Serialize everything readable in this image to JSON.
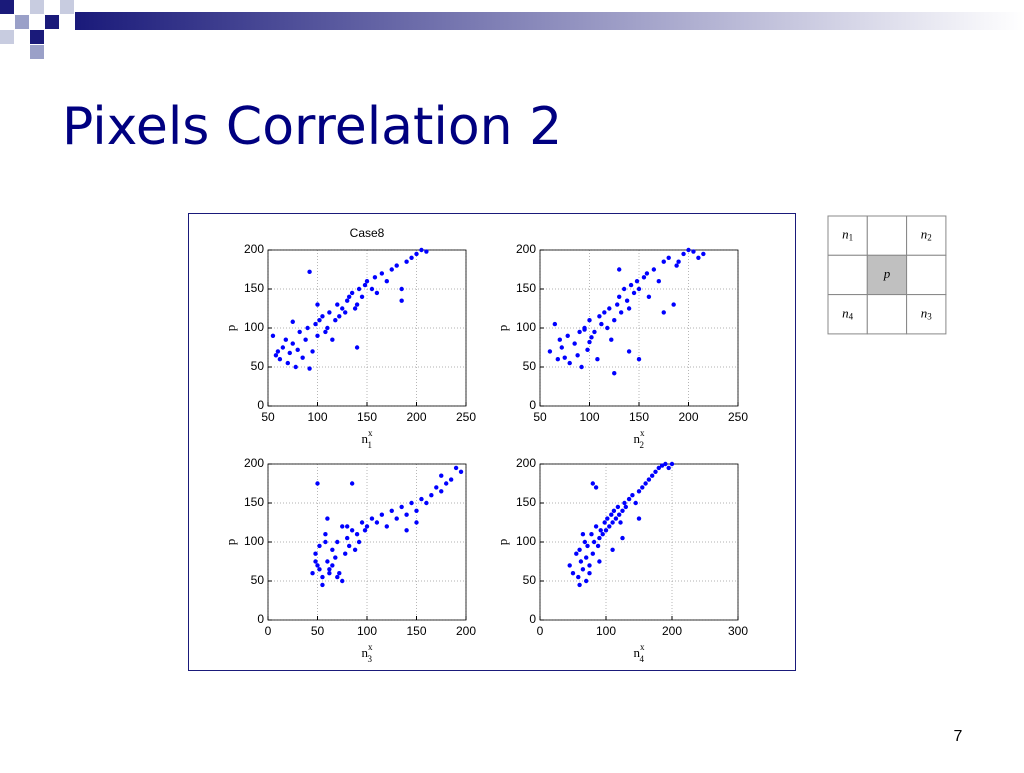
{
  "slide": {
    "title": "Pixels Correlation 2",
    "page_number": "7"
  },
  "neighborhood": {
    "rows": [
      [
        {
          "base": "n",
          "sub": "1"
        },
        null,
        {
          "base": "n",
          "sub": "2"
        }
      ],
      [
        null,
        {
          "base": "p"
        },
        null
      ],
      [
        {
          "base": "n",
          "sub": "4"
        },
        null,
        {
          "base": "n",
          "sub": "3"
        }
      ]
    ]
  },
  "chart_data": [
    {
      "type": "scatter",
      "title": "Case8",
      "xlabel": "n",
      "xlabel_sup": "x",
      "xlabel_sub": "1",
      "ylabel": "p",
      "xlim": [
        50,
        250
      ],
      "xticks": [
        50,
        100,
        150,
        200,
        250
      ],
      "ylim": [
        0,
        200
      ],
      "yticks": [
        0,
        50,
        100,
        150,
        200
      ],
      "grid": true,
      "series": [
        {
          "color": "#0000ff",
          "x": [
            55,
            58,
            60,
            62,
            65,
            68,
            70,
            72,
            75,
            78,
            80,
            82,
            85,
            88,
            90,
            92,
            95,
            98,
            100,
            102,
            105,
            108,
            110,
            112,
            115,
            118,
            120,
            122,
            125,
            128,
            130,
            132,
            135,
            138,
            140,
            142,
            145,
            148,
            150,
            155,
            158,
            160,
            165,
            170,
            175,
            180,
            185,
            190,
            195,
            200,
            205,
            210,
            92,
            140,
            185,
            100,
            75
          ],
          "values": [
            90,
            65,
            70,
            60,
            75,
            85,
            55,
            68,
            80,
            50,
            72,
            95,
            62,
            85,
            100,
            48,
            70,
            105,
            90,
            110,
            115,
            95,
            100,
            120,
            85,
            110,
            130,
            115,
            125,
            120,
            135,
            140,
            145,
            125,
            130,
            150,
            140,
            155,
            160,
            150,
            165,
            145,
            170,
            160,
            175,
            180,
            150,
            185,
            190,
            195,
            200,
            198,
            172,
            75,
            135,
            130,
            108
          ]
        }
      ]
    },
    {
      "type": "scatter",
      "xlabel": "n",
      "xlabel_sup": "x",
      "xlabel_sub": "2",
      "ylabel": "p",
      "xlim": [
        50,
        250
      ],
      "xticks": [
        50,
        100,
        150,
        200,
        250
      ],
      "ylim": [
        0,
        200
      ],
      "yticks": [
        0,
        50,
        100,
        150,
        200
      ],
      "grid": true,
      "series": [
        {
          "color": "#0000ff",
          "x": [
            60,
            65,
            68,
            70,
            72,
            75,
            78,
            80,
            85,
            88,
            90,
            92,
            95,
            98,
            100,
            102,
            105,
            108,
            110,
            112,
            115,
            118,
            120,
            122,
            125,
            128,
            130,
            132,
            135,
            138,
            140,
            142,
            145,
            148,
            150,
            155,
            158,
            160,
            165,
            170,
            175,
            180,
            185,
            188,
            190,
            195,
            200,
            205,
            210,
            215,
            125,
            140,
            150,
            175,
            130,
            95,
            100
          ],
          "values": [
            70,
            105,
            60,
            85,
            75,
            62,
            90,
            55,
            80,
            65,
            95,
            50,
            100,
            72,
            110,
            88,
            95,
            60,
            115,
            105,
            120,
            100,
            125,
            85,
            110,
            130,
            140,
            120,
            150,
            135,
            125,
            155,
            145,
            160,
            150,
            165,
            170,
            140,
            175,
            160,
            185,
            190,
            130,
            180,
            185,
            195,
            200,
            198,
            190,
            195,
            42,
            70,
            60,
            120,
            175,
            98,
            82
          ]
        }
      ]
    },
    {
      "type": "scatter",
      "xlabel": "n",
      "xlabel_sup": "x",
      "xlabel_sub": "3",
      "ylabel": "p",
      "xlim": [
        0,
        200
      ],
      "xticks": [
        0,
        50,
        100,
        150,
        200
      ],
      "ylim": [
        0,
        200
      ],
      "yticks": [
        0,
        50,
        100,
        150,
        200
      ],
      "grid": true,
      "series": [
        {
          "color": "#0000ff",
          "x": [
            45,
            48,
            50,
            52,
            55,
            58,
            60,
            62,
            65,
            68,
            70,
            72,
            75,
            78,
            80,
            82,
            85,
            88,
            90,
            92,
            95,
            98,
            100,
            105,
            110,
            115,
            120,
            125,
            130,
            135,
            140,
            145,
            150,
            155,
            160,
            165,
            170,
            175,
            180,
            185,
            190,
            195,
            50,
            55,
            60,
            65,
            70,
            75,
            80,
            52,
            58,
            62,
            48,
            85,
            140,
            175,
            150
          ],
          "values": [
            60,
            85,
            70,
            95,
            55,
            110,
            75,
            65,
            90,
            80,
            100,
            60,
            120,
            85,
            105,
            95,
            115,
            90,
            110,
            100,
            125,
            115,
            120,
            130,
            125,
            135,
            120,
            140,
            130,
            145,
            135,
            150,
            140,
            155,
            150,
            160,
            170,
            165,
            175,
            180,
            195,
            190,
            175,
            45,
            130,
            70,
            55,
            50,
            120,
            65,
            100,
            60,
            75,
            175,
            115,
            185,
            125
          ]
        }
      ]
    },
    {
      "type": "scatter",
      "xlabel": "n",
      "xlabel_sup": "x",
      "xlabel_sub": "4",
      "ylabel": "p",
      "xlim": [
        0,
        300
      ],
      "xticks": [
        0,
        100,
        200,
        300
      ],
      "ylim": [
        0,
        200
      ],
      "yticks": [
        0,
        50,
        100,
        150,
        200
      ],
      "grid": true,
      "series": [
        {
          "color": "#0000ff",
          "x": [
            45,
            50,
            55,
            58,
            60,
            62,
            65,
            68,
            70,
            72,
            75,
            78,
            80,
            82,
            85,
            88,
            90,
            92,
            95,
            98,
            100,
            102,
            105,
            108,
            110,
            112,
            115,
            118,
            120,
            122,
            125,
            128,
            130,
            135,
            140,
            145,
            150,
            155,
            160,
            165,
            170,
            175,
            180,
            185,
            190,
            195,
            200,
            60,
            65,
            70,
            80,
            85,
            75,
            90,
            110,
            125,
            150
          ],
          "values": [
            70,
            60,
            85,
            55,
            90,
            75,
            65,
            100,
            80,
            95,
            70,
            110,
            85,
            100,
            120,
            95,
            105,
            115,
            110,
            125,
            115,
            130,
            120,
            135,
            125,
            140,
            130,
            145,
            135,
            125,
            140,
            150,
            145,
            155,
            160,
            150,
            165,
            170,
            175,
            180,
            185,
            190,
            195,
            198,
            200,
            195,
            200,
            45,
            110,
            50,
            175,
            170,
            60,
            75,
            90,
            105,
            130
          ]
        }
      ]
    }
  ]
}
